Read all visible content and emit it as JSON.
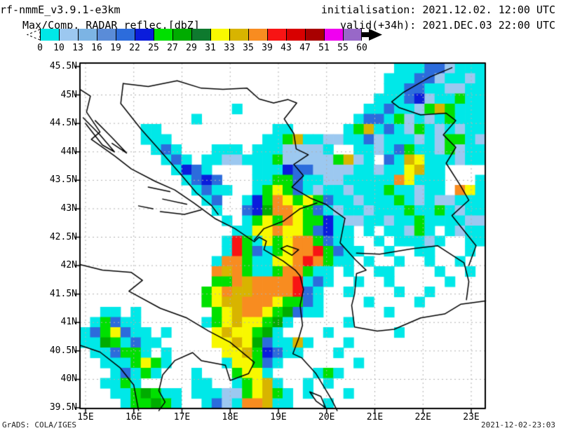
{
  "header": {
    "model": "rf-nmmE_v3.9.1-e3km",
    "product": "Max/Comp. RADAR reflec.[dbZ]",
    "init_label": "initialisation: 2021.12.02. 12:00 UTC",
    "valid_label": "valid(+34h): 2021.DEC.03 22:00 UTC"
  },
  "footer": {
    "credit": "GrADS: COLA/IGES",
    "timestamp": "2021-12-02-23:03"
  },
  "colorbar": {
    "ticks": [
      "0",
      "10",
      "13",
      "16",
      "19",
      "22",
      "25",
      "27",
      "29",
      "31",
      "33",
      "35",
      "39",
      "43",
      "47",
      "51",
      "55",
      "60"
    ],
    "colors": [
      "#00E8E8",
      "#9CC8F0",
      "#7CB4E4",
      "#5A8CD8",
      "#2C6CDC",
      "#0A1CDC",
      "#00E000",
      "#00AC00",
      "#0E7A2E",
      "#F8F800",
      "#D8B400",
      "#F88C20",
      "#F81414",
      "#D80000",
      "#A80000",
      "#F000F0",
      "#9868C8"
    ]
  },
  "axes": {
    "lat_ticks": [
      {
        "label": "45.5N",
        "value": 45.5
      },
      {
        "label": "45N",
        "value": 45
      },
      {
        "label": "44.5N",
        "value": 44.5
      },
      {
        "label": "44N",
        "value": 44
      },
      {
        "label": "43.5N",
        "value": 43.5
      },
      {
        "label": "43N",
        "value": 43
      },
      {
        "label": "42.5N",
        "value": 42.5
      },
      {
        "label": "42N",
        "value": 42
      },
      {
        "label": "41.5N",
        "value": 41.5
      },
      {
        "label": "41N",
        "value": 41
      },
      {
        "label": "40.5N",
        "value": 40.5
      },
      {
        "label": "40N",
        "value": 40
      },
      {
        "label": "39.5N",
        "value": 39.5
      }
    ],
    "lon_ticks": [
      {
        "label": "15E",
        "value": 15
      },
      {
        "label": "16E",
        "value": 16
      },
      {
        "label": "17E",
        "value": 17
      },
      {
        "label": "18E",
        "value": 18
      },
      {
        "label": "19E",
        "value": 19
      },
      {
        "label": "20E",
        "value": 20
      },
      {
        "label": "21E",
        "value": 21
      },
      {
        "label": "22E",
        "value": 22
      },
      {
        "label": "23E",
        "value": 23
      }
    ]
  },
  "chart_data": {
    "type": "heatmap",
    "title": "Max/Comp. RADAR reflec.[dbZ]",
    "units": "dbZ",
    "levels": [
      0,
      10,
      13,
      16,
      19,
      22,
      25,
      27,
      29,
      31,
      33,
      35,
      39,
      43,
      47,
      51,
      55,
      60
    ],
    "extent": {
      "lon_min": 14.88,
      "lon_max": 23.29,
      "lat_min": 39.49,
      "lat_max": 45.56
    },
    "grid_cols": 40,
    "grid_note": "one char per ~0.21deg lon x 0.18deg lat cell, row 0 = north",
    "palette": {
      ".": "#FFFFFF",
      "1": "#00E8E8",
      "2": "#9CC8F0",
      "3": "#7CB4E4",
      "4": "#5A8CD8",
      "5": "#2C6CDC",
      "6": "#0A1CDC",
      "g": "#00E000",
      "h": "#00AC00",
      "i": "#0E7A2E",
      "y": "#F8F800",
      "k": "#D8B400",
      "o": "#F88C20",
      "r": "#F81414",
      "n": "#D80000",
      "d": "#A80000",
      "m": "#F000F0",
      "p": "#9868C8"
    },
    "grid_rows": [
      "...............................111552111",
      "..............................1115521121",
      "..............................1155112211",
      ".............................11156211g11",
      "...............1............115112gkg111",
      "...........1...............1551g2121g111",
      "......11...........11.....1gk1512g121211",
      "......111.........11gk11221152111212gg12",
      ".......151...111.11122221..11215g112g211",
      "........151.1122111g22222gk21.51ky111211",
      ".........1651....111655222211211yk11....",
      "..........1565...11gg5112211111oy111...1",
      "...........1511..1gyg512112111g11211.oy1",
      "............15..16goygyg5112111g12122111",
      ".............1..56hooyg512112111g11g1211",
      "..............1.1gygoygg612211211g111122",
      "...............11yyoyyg5611.1.112g1.1211",
      "..............1rg1ygyoog511..1.11121..11",
      "..............1rg51gyoorg511..1..11...1.",
      ".............1oog11yyorog11.1..1..1..1..",
      ".............okog11goog11.1..11....1..1.",
      ".............ggokoooor151..1..1.....1...",
      "............gyokkoooor51..1....1..1.....",
      "............gykkoooygg51....1....1......",
      "..11.1.......gykooygh511......1.........",
      ".1g511......1gykyygh1.....1.............",
      "15gy511.1....ykyygh1....1......1........",
      "11hg1511.....yykyh511k1...1.............",
      ".115gg1.1.....yykg6511...1..............",
      "..111gyg1.....1yyg51.......1............",
      "...151g1...1...gyy1....1g1..............",
      "..11g1.....11..1gyk1..1.1...............",
      "...11ghg11.11122gykg1.1...1.............",
      "....1gghg1..1521ook11...1..............."
    ],
    "coastlines": [
      {
        "name": "italy-adriatic-heel",
        "pts": [
          [
            14.88,
            42.02
          ],
          [
            15.35,
            41.92
          ],
          [
            15.95,
            41.88
          ],
          [
            16.18,
            41.74
          ],
          [
            15.9,
            41.55
          ],
          [
            16.55,
            41.25
          ],
          [
            17.1,
            41.08
          ],
          [
            17.55,
            40.85
          ],
          [
            18.0,
            40.65
          ],
          [
            18.5,
            40.3
          ],
          [
            18.38,
            40.1
          ],
          [
            18.0,
            39.98
          ],
          [
            17.9,
            40.25
          ],
          [
            17.4,
            40.33
          ],
          [
            17.22,
            40.47
          ],
          [
            16.85,
            40.33
          ],
          [
            16.6,
            40.08
          ],
          [
            16.52,
            39.8
          ],
          [
            16.65,
            39.6
          ],
          [
            16.52,
            39.45
          ]
        ]
      },
      {
        "name": "italy-tyrrhenian",
        "pts": [
          [
            14.88,
            40.6
          ],
          [
            15.3,
            40.48
          ],
          [
            15.72,
            40.2
          ],
          [
            16.0,
            39.9
          ],
          [
            16.1,
            39.45
          ]
        ]
      },
      {
        "name": "balkan-coast",
        "pts": [
          [
            14.88,
            45.1
          ],
          [
            15.1,
            44.98
          ],
          [
            15.02,
            44.7
          ],
          [
            15.3,
            44.35
          ],
          [
            15.12,
            44.22
          ],
          [
            15.6,
            43.93
          ],
          [
            15.95,
            43.7
          ],
          [
            16.45,
            43.48
          ],
          [
            16.85,
            43.33
          ],
          [
            17.25,
            43.1
          ],
          [
            17.7,
            42.82
          ],
          [
            18.1,
            42.65
          ],
          [
            18.5,
            42.42
          ],
          [
            18.6,
            42.5
          ],
          [
            18.75,
            42.43
          ],
          [
            18.7,
            42.28
          ],
          [
            19.1,
            42.08
          ],
          [
            19.35,
            41.92
          ],
          [
            19.45,
            41.82
          ],
          [
            19.52,
            41.58
          ],
          [
            19.45,
            41.3
          ],
          [
            19.5,
            40.95
          ],
          [
            19.42,
            40.72
          ],
          [
            19.3,
            40.45
          ],
          [
            19.48,
            40.38
          ],
          [
            19.78,
            40.1
          ],
          [
            19.98,
            39.82
          ],
          [
            20.1,
            39.65
          ],
          [
            20.22,
            39.45
          ]
        ]
      },
      {
        "name": "island-1",
        "pts": [
          [
            14.95,
            44.6
          ],
          [
            15.3,
            44.3
          ],
          [
            15.6,
            44.0
          ],
          [
            15.35,
            44.12
          ],
          [
            15.0,
            44.5
          ]
        ]
      },
      {
        "name": "island-2",
        "pts": [
          [
            15.2,
            44.55
          ],
          [
            15.55,
            44.25
          ],
          [
            15.85,
            43.98
          ],
          [
            15.55,
            44.15
          ]
        ]
      },
      {
        "name": "island-3",
        "pts": [
          [
            16.3,
            43.38
          ],
          [
            16.75,
            43.3
          ]
        ]
      },
      {
        "name": "island-4",
        "pts": [
          [
            16.6,
            43.17
          ],
          [
            17.1,
            43.08
          ]
        ]
      },
      {
        "name": "island-5",
        "pts": [
          [
            16.55,
            42.95
          ],
          [
            17.05,
            42.9
          ],
          [
            17.4,
            42.98
          ]
        ]
      },
      {
        "name": "island-6",
        "pts": [
          [
            16.1,
            43.05
          ],
          [
            16.4,
            43.0
          ]
        ]
      },
      {
        "name": "croatia-bosnia-border",
        "pts": [
          [
            15.78,
            45.2
          ],
          [
            15.73,
            44.85
          ],
          [
            16.15,
            44.4
          ],
          [
            16.55,
            44.02
          ],
          [
            17.0,
            43.58
          ],
          [
            17.3,
            43.28
          ],
          [
            17.62,
            43.05
          ],
          [
            17.75,
            42.9
          ]
        ]
      },
      {
        "name": "sava-drina-border",
        "pts": [
          [
            15.78,
            45.2
          ],
          [
            16.3,
            45.15
          ],
          [
            16.9,
            45.25
          ],
          [
            17.4,
            45.12
          ],
          [
            17.85,
            45.1
          ],
          [
            18.35,
            45.12
          ],
          [
            18.6,
            44.93
          ],
          [
            18.9,
            44.86
          ],
          [
            19.2,
            44.92
          ],
          [
            19.38,
            44.86
          ],
          [
            19.12,
            44.58
          ],
          [
            19.32,
            44.32
          ],
          [
            19.37,
            44.05
          ],
          [
            19.62,
            43.95
          ],
          [
            19.32,
            43.78
          ],
          [
            19.52,
            43.58
          ],
          [
            19.28,
            43.38
          ],
          [
            19.68,
            43.18
          ],
          [
            19.98,
            43.08
          ],
          [
            20.15,
            42.97
          ],
          [
            20.38,
            42.83
          ]
        ]
      },
      {
        "name": "kosovo-macedonia-border",
        "pts": [
          [
            20.38,
            42.83
          ],
          [
            20.28,
            42.4
          ],
          [
            20.6,
            42.1
          ],
          [
            20.82,
            41.92
          ],
          [
            20.62,
            41.86
          ],
          [
            20.58,
            41.5
          ],
          [
            20.52,
            41.3
          ],
          [
            20.58,
            40.92
          ],
          [
            21.05,
            40.85
          ],
          [
            21.4,
            40.88
          ],
          [
            21.95,
            41.08
          ],
          [
            22.45,
            41.15
          ],
          [
            22.78,
            41.32
          ],
          [
            23.3,
            41.38
          ]
        ]
      },
      {
        "name": "macedonia-north-border",
        "pts": [
          [
            20.62,
            42.22
          ],
          [
            21.1,
            42.2
          ],
          [
            21.45,
            42.25
          ],
          [
            21.8,
            42.3
          ],
          [
            22.3,
            42.35
          ],
          [
            22.85,
            42.05
          ],
          [
            22.95,
            41.72
          ],
          [
            22.9,
            41.4
          ]
        ]
      },
      {
        "name": "serbia-bulgaria-danube",
        "pts": [
          [
            22.95,
            42.0
          ],
          [
            23.1,
            42.35
          ],
          [
            22.6,
            42.88
          ],
          [
            22.95,
            43.15
          ],
          [
            22.78,
            43.4
          ],
          [
            22.48,
            43.8
          ],
          [
            22.68,
            44.08
          ],
          [
            22.42,
            44.3
          ],
          [
            22.68,
            44.55
          ],
          [
            22.48,
            44.68
          ],
          [
            21.95,
            44.65
          ],
          [
            21.5,
            44.78
          ],
          [
            21.35,
            44.88
          ],
          [
            21.6,
            45.05
          ],
          [
            22.15,
            45.32
          ],
          [
            22.6,
            45.48
          ]
        ]
      },
      {
        "name": "montenegro-border",
        "pts": [
          [
            18.5,
            42.45
          ],
          [
            18.7,
            42.65
          ],
          [
            19.1,
            42.78
          ],
          [
            19.45,
            43.0
          ],
          [
            19.8,
            43.1
          ]
        ]
      },
      {
        "name": "lake-skadar",
        "pts": [
          [
            19.05,
            42.3
          ],
          [
            19.28,
            42.18
          ],
          [
            19.42,
            42.28
          ],
          [
            19.18,
            42.35
          ],
          [
            19.05,
            42.3
          ]
        ]
      },
      {
        "name": "corfu",
        "pts": [
          [
            19.65,
            39.78
          ],
          [
            19.88,
            39.7
          ],
          [
            19.98,
            39.5
          ],
          [
            19.78,
            39.62
          ],
          [
            19.65,
            39.78
          ]
        ]
      }
    ]
  }
}
